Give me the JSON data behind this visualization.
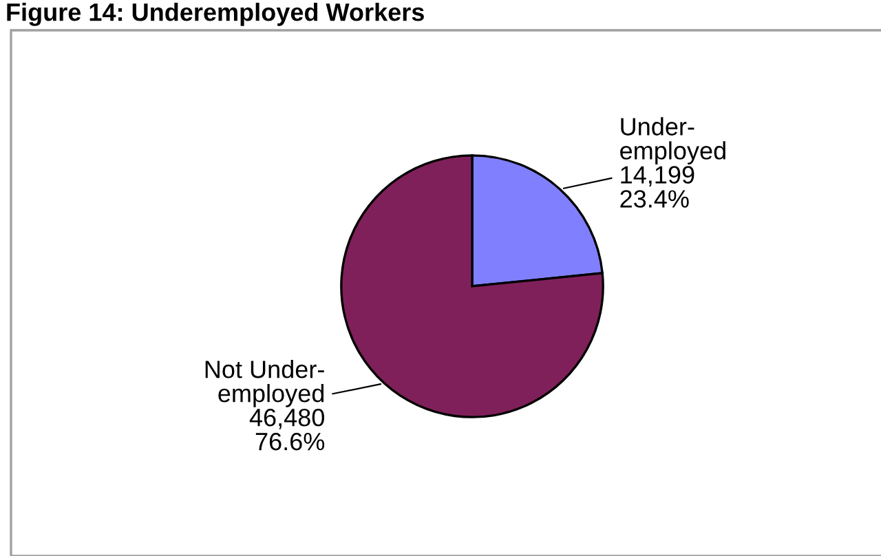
{
  "chart_data": {
    "type": "pie",
    "title": "Figure 14: Underemployed Workers",
    "categories": [
      "Under-\nemployed",
      "Not Under-\nemployed"
    ],
    "values": [
      14199,
      46480
    ],
    "value_labels": [
      "14,199\n23.4%",
      "46,480\n76.6%"
    ],
    "colors": [
      "#8080ff",
      "#80205a"
    ],
    "legend": false
  }
}
